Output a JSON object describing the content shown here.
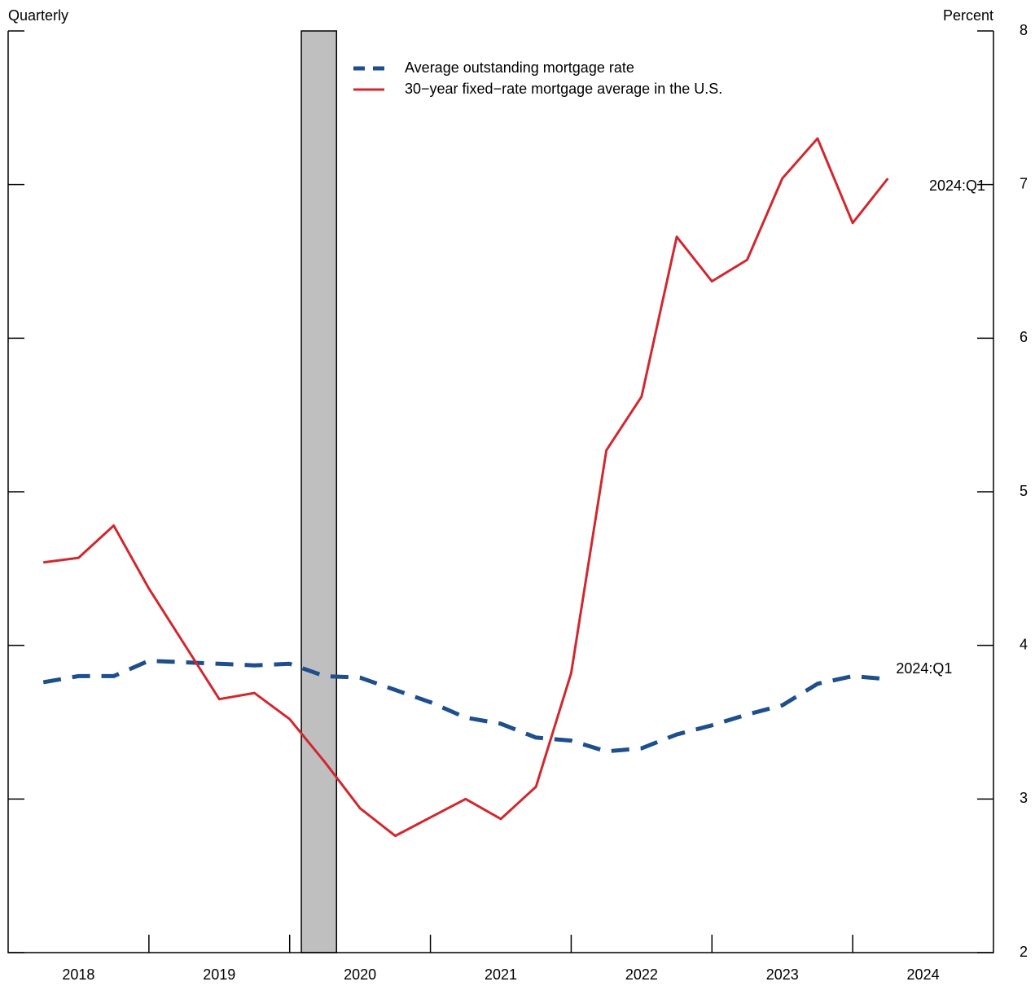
{
  "chart_data": {
    "type": "line",
    "frequency_label": "Quarterly",
    "y_unit_label": "Percent",
    "x": [
      2018.25,
      2018.5,
      2018.75,
      2019,
      2019.25,
      2019.5,
      2019.75,
      2020,
      2020.25,
      2020.5,
      2020.75,
      2021,
      2021.25,
      2021.5,
      2021.75,
      2022,
      2022.25,
      2022.5,
      2022.75,
      2023,
      2023.25,
      2023.5,
      2023.75,
      2024,
      2024.25
    ],
    "xlim": [
      2018,
      2025
    ],
    "xticks": [
      2019,
      2020,
      2021,
      2022,
      2023,
      2024
    ],
    "year_labels": [
      "2018",
      "2019",
      "2020",
      "2021",
      "2022",
      "2023",
      "2024"
    ],
    "ylim": [
      2,
      8
    ],
    "yticks": [
      2,
      3,
      4,
      5,
      6,
      7,
      8
    ],
    "recession": [
      2020.083,
      2020.333
    ],
    "recession_color": "#bfbfbf",
    "series": [
      {
        "name": "Average outstanding mortgage rate",
        "color": "#1f4e8c",
        "dashed": true,
        "end_label": "2024:Q1",
        "values": [
          3.76,
          3.8,
          3.8,
          3.9,
          3.89,
          3.88,
          3.87,
          3.88,
          3.8,
          3.79,
          3.71,
          3.63,
          3.53,
          3.49,
          3.4,
          3.38,
          3.31,
          3.33,
          3.42,
          3.48,
          3.55,
          3.61,
          3.75,
          3.8,
          3.78
        ]
      },
      {
        "name": "30−year fixed−rate mortgage average in the U.S.",
        "color": "#d0282e",
        "dashed": false,
        "end_label": "2024:Q1",
        "values": [
          4.54,
          4.57,
          4.78,
          4.37,
          4.01,
          3.65,
          3.69,
          3.52,
          3.24,
          2.94,
          2.76,
          2.88,
          3.0,
          2.87,
          3.08,
          3.82,
          5.27,
          5.62,
          6.66,
          6.37,
          6.51,
          7.04,
          7.3,
          6.75,
          7.04
        ]
      }
    ]
  }
}
